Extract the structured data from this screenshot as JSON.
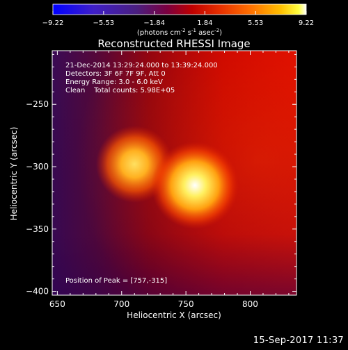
{
  "colorbar": {
    "ticks": [
      "-9.22",
      "-5.53",
      "-1.84",
      "1.84",
      "5.53",
      "9.22"
    ],
    "units_prefix": "(photons cm",
    "units_exp1": "-2",
    "units_mid": " s",
    "units_exp2": "-1",
    "units_mid2": " asec",
    "units_exp3": "-2",
    "units_suffix": ")"
  },
  "annotations": {
    "time_range": "21-Dec-2014 13:29:24.000 to 13:39:24.000",
    "detectors": "Detectors: 3F 6F 7F 9F, Att 0",
    "energy_range": "Energy Range: 3.0 - 6.0 keV",
    "clean": "Clean    Total counts: 5.98E+05",
    "peak_position": "Position of Peak = [757,-315]"
  },
  "footer": {
    "date_stamp": "15-Sep-2017 11:37"
  },
  "colors": {
    "background": "#000000",
    "axes": "#ffffff",
    "colormap": [
      "#0000ff",
      "#3f1fc8",
      "#4a1f80",
      "#7a0040",
      "#c00000",
      "#e83000",
      "#ff7000",
      "#ffc000",
      "#ffff40",
      "#ffffff"
    ]
  },
  "chart_data": {
    "type": "heatmap",
    "title": "Reconstructed RHESSI Image",
    "xlabel": "Heliocentric X (arcsec)",
    "ylabel": "Heliocentric Y (arcsec)",
    "xlim": [
      646,
      836
    ],
    "ylim": [
      -403,
      -207
    ],
    "xticks": [
      650,
      700,
      750,
      800
    ],
    "yticks": [
      -400,
      -350,
      -300,
      -250
    ],
    "colorbar_range": [
      -9.22,
      9.22
    ],
    "sources": [
      {
        "x": 710,
        "y": -298,
        "peak": 6.3
      },
      {
        "x": 757,
        "y": -315,
        "peak": 9.22
      }
    ]
  }
}
